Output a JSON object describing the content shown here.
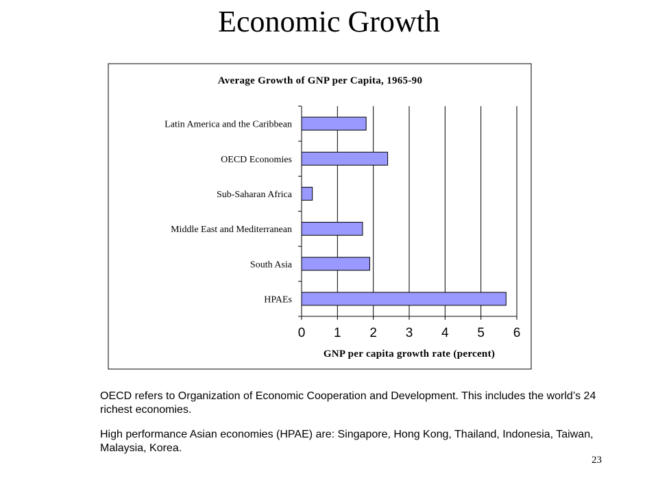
{
  "slide": {
    "title": "Economic Growth",
    "notes": [
      "OECD refers to Organization of Economic Cooperation and Development. This includes the world’s 24 richest economies.",
      "High performance Asian economies (HPAE) are: Singapore, Hong Kong, Thailand, Indonesia, Taiwan, Malaysia, Korea."
    ],
    "page_number": "23"
  },
  "chart_data": {
    "type": "bar",
    "orientation": "horizontal",
    "title": "Average Growth of GNP per Capita, 1965-90",
    "xlabel": "GNP per capita growth rate (percent)",
    "ylabel": "",
    "categories": [
      "Latin America and the Caribbean",
      "OECD Economies",
      "Sub-Saharan Africa",
      "Middle East and Mediterranean",
      "South Asia",
      "HPAEs"
    ],
    "values": [
      1.8,
      2.4,
      0.3,
      1.7,
      1.9,
      5.7
    ],
    "xlim": [
      0,
      6
    ],
    "xticks": [
      "0",
      "1",
      "2",
      "3",
      "4",
      "5",
      "6"
    ],
    "grid": "vertical",
    "bar_color": "#9999ff",
    "bar_edge_color": "#000000"
  }
}
